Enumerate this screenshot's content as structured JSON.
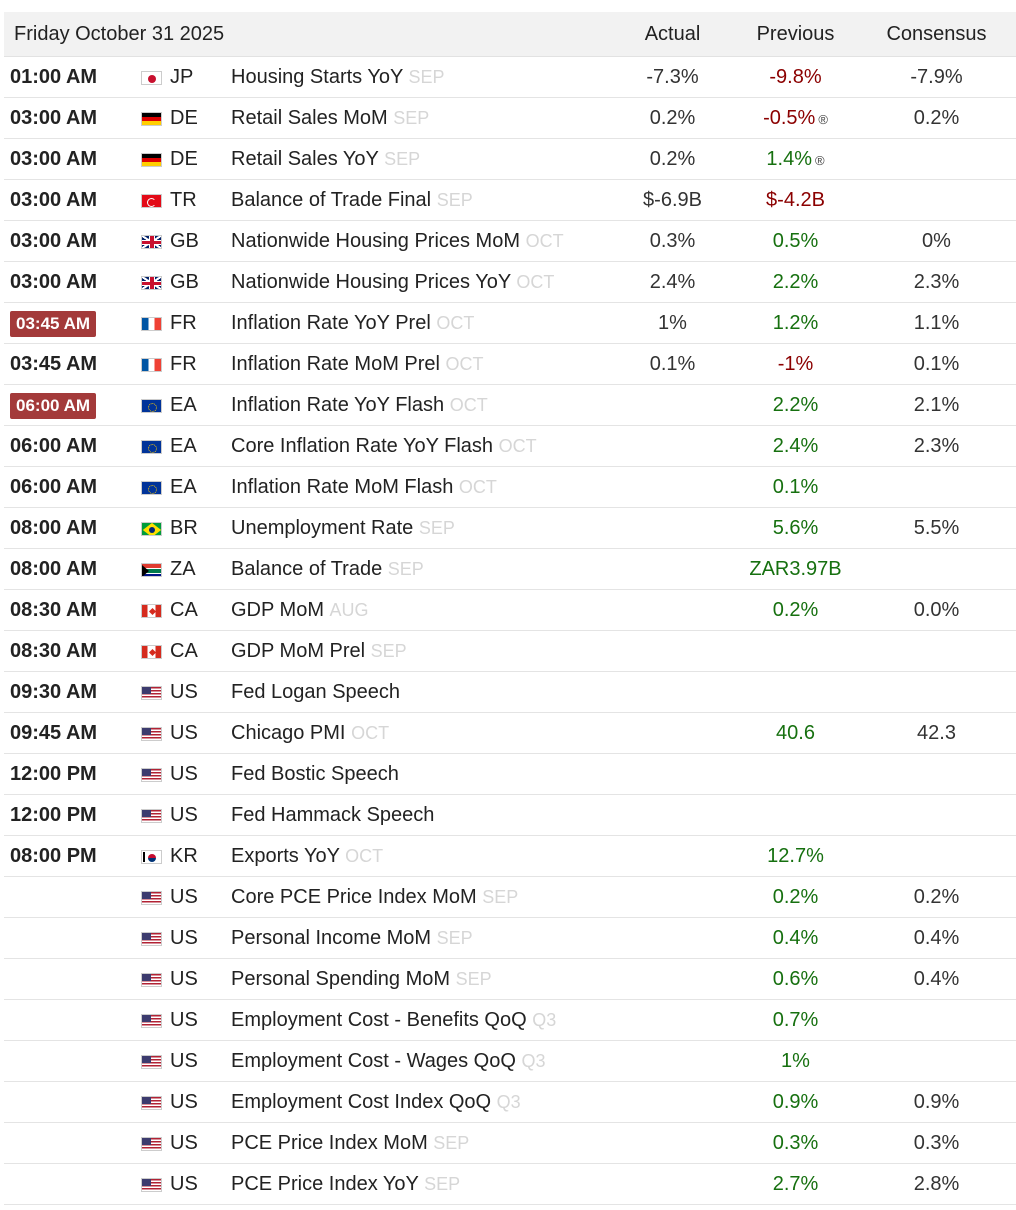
{
  "header": {
    "date": "Friday October 31 2025",
    "actual": "Actual",
    "previous": "Previous",
    "consensus": "Consensus"
  },
  "rows": [
    {
      "time": "01:00 AM",
      "highlight": false,
      "flag": "japan-flag-icon",
      "country": "JP",
      "event": "Housing Starts YoY",
      "ref": "SEP",
      "actual": "-7.3%",
      "previous": "-9.8%",
      "prev_color": "red",
      "revised": false,
      "consensus": "-7.9%"
    },
    {
      "time": "03:00 AM",
      "highlight": false,
      "flag": "germany-flag-icon",
      "country": "DE",
      "event": "Retail Sales MoM",
      "ref": "SEP",
      "actual": "0.2%",
      "previous": "-0.5%",
      "prev_color": "red",
      "revised": true,
      "consensus": "0.2%"
    },
    {
      "time": "03:00 AM",
      "highlight": false,
      "flag": "germany-flag-icon",
      "country": "DE",
      "event": "Retail Sales YoY",
      "ref": "SEP",
      "actual": "0.2%",
      "previous": "1.4%",
      "prev_color": "green",
      "revised": true,
      "consensus": ""
    },
    {
      "time": "03:00 AM",
      "highlight": false,
      "flag": "turkey-flag-icon",
      "country": "TR",
      "event": "Balance of Trade Final",
      "ref": "SEP",
      "actual": "$-6.9B",
      "previous": "$-4.2B",
      "prev_color": "red",
      "revised": false,
      "consensus": ""
    },
    {
      "time": "03:00 AM",
      "highlight": false,
      "flag": "uk-flag-icon",
      "country": "GB",
      "event": "Nationwide Housing Prices MoM",
      "ref": "OCT",
      "actual": "0.3%",
      "previous": "0.5%",
      "prev_color": "green",
      "revised": false,
      "consensus": "0%"
    },
    {
      "time": "03:00 AM",
      "highlight": false,
      "flag": "uk-flag-icon",
      "country": "GB",
      "event": "Nationwide Housing Prices YoY",
      "ref": "OCT",
      "actual": "2.4%",
      "previous": "2.2%",
      "prev_color": "green",
      "revised": false,
      "consensus": "2.3%"
    },
    {
      "time": "03:45 AM",
      "highlight": true,
      "flag": "france-flag-icon",
      "country": "FR",
      "event": "Inflation Rate YoY Prel",
      "ref": "OCT",
      "actual": "1%",
      "previous": "1.2%",
      "prev_color": "green",
      "revised": false,
      "consensus": "1.1%"
    },
    {
      "time": "03:45 AM",
      "highlight": false,
      "flag": "france-flag-icon",
      "country": "FR",
      "event": "Inflation Rate MoM Prel",
      "ref": "OCT",
      "actual": "0.1%",
      "previous": "-1%",
      "prev_color": "red",
      "revised": false,
      "consensus": "0.1%"
    },
    {
      "time": "06:00 AM",
      "highlight": true,
      "flag": "eu-flag-icon",
      "country": "EA",
      "event": "Inflation Rate YoY Flash",
      "ref": "OCT",
      "actual": "",
      "previous": "2.2%",
      "prev_color": "green",
      "revised": false,
      "consensus": "2.1%"
    },
    {
      "time": "06:00 AM",
      "highlight": false,
      "flag": "eu-flag-icon",
      "country": "EA",
      "event": "Core Inflation Rate YoY Flash",
      "ref": "OCT",
      "actual": "",
      "previous": "2.4%",
      "prev_color": "green",
      "revised": false,
      "consensus": "2.3%"
    },
    {
      "time": "06:00 AM",
      "highlight": false,
      "flag": "eu-flag-icon",
      "country": "EA",
      "event": "Inflation Rate MoM Flash",
      "ref": "OCT",
      "actual": "",
      "previous": "0.1%",
      "prev_color": "green",
      "revised": false,
      "consensus": ""
    },
    {
      "time": "08:00 AM",
      "highlight": false,
      "flag": "brazil-flag-icon",
      "country": "BR",
      "event": "Unemployment Rate",
      "ref": "SEP",
      "actual": "",
      "previous": "5.6%",
      "prev_color": "green",
      "revised": false,
      "consensus": "5.5%"
    },
    {
      "time": "08:00 AM",
      "highlight": false,
      "flag": "south-africa-flag-icon",
      "country": "ZA",
      "event": "Balance of Trade",
      "ref": "SEP",
      "actual": "",
      "previous": "ZAR3.97B",
      "prev_color": "green",
      "revised": false,
      "consensus": ""
    },
    {
      "time": "08:30 AM",
      "highlight": false,
      "flag": "canada-flag-icon",
      "country": "CA",
      "event": "GDP MoM",
      "ref": "AUG",
      "actual": "",
      "previous": "0.2%",
      "prev_color": "green",
      "revised": false,
      "consensus": "0.0%"
    },
    {
      "time": "08:30 AM",
      "highlight": false,
      "flag": "canada-flag-icon",
      "country": "CA",
      "event": "GDP MoM Prel",
      "ref": "SEP",
      "actual": "",
      "previous": "",
      "prev_color": "neutral",
      "revised": false,
      "consensus": ""
    },
    {
      "time": "09:30 AM",
      "highlight": false,
      "flag": "us-flag-icon",
      "country": "US",
      "event": "Fed Logan Speech",
      "ref": "",
      "actual": "",
      "previous": "",
      "prev_color": "neutral",
      "revised": false,
      "consensus": ""
    },
    {
      "time": "09:45 AM",
      "highlight": false,
      "flag": "us-flag-icon",
      "country": "US",
      "event": "Chicago PMI",
      "ref": "OCT",
      "actual": "",
      "previous": "40.6",
      "prev_color": "green",
      "revised": false,
      "consensus": "42.3"
    },
    {
      "time": "12:00 PM",
      "highlight": false,
      "flag": "us-flag-icon",
      "country": "US",
      "event": "Fed Bostic Speech",
      "ref": "",
      "actual": "",
      "previous": "",
      "prev_color": "neutral",
      "revised": false,
      "consensus": ""
    },
    {
      "time": "12:00 PM",
      "highlight": false,
      "flag": "us-flag-icon",
      "country": "US",
      "event": "Fed Hammack Speech",
      "ref": "",
      "actual": "",
      "previous": "",
      "prev_color": "neutral",
      "revised": false,
      "consensus": ""
    },
    {
      "time": "08:00 PM",
      "highlight": false,
      "flag": "south-korea-flag-icon",
      "country": "KR",
      "event": "Exports YoY",
      "ref": "OCT",
      "actual": "",
      "previous": "12.7%",
      "prev_color": "green",
      "revised": false,
      "consensus": ""
    },
    {
      "time": "",
      "highlight": false,
      "flag": "us-flag-icon",
      "country": "US",
      "event": "Core PCE Price Index MoM",
      "ref": "SEP",
      "actual": "",
      "previous": "0.2%",
      "prev_color": "green",
      "revised": false,
      "consensus": "0.2%"
    },
    {
      "time": "",
      "highlight": false,
      "flag": "us-flag-icon",
      "country": "US",
      "event": "Personal Income MoM",
      "ref": "SEP",
      "actual": "",
      "previous": "0.4%",
      "prev_color": "green",
      "revised": false,
      "consensus": "0.4%"
    },
    {
      "time": "",
      "highlight": false,
      "flag": "us-flag-icon",
      "country": "US",
      "event": "Personal Spending MoM",
      "ref": "SEP",
      "actual": "",
      "previous": "0.6%",
      "prev_color": "green",
      "revised": false,
      "consensus": "0.4%"
    },
    {
      "time": "",
      "highlight": false,
      "flag": "us-flag-icon",
      "country": "US",
      "event": "Employment Cost - Benefits QoQ",
      "ref": "Q3",
      "actual": "",
      "previous": "0.7%",
      "prev_color": "green",
      "revised": false,
      "consensus": ""
    },
    {
      "time": "",
      "highlight": false,
      "flag": "us-flag-icon",
      "country": "US",
      "event": "Employment Cost - Wages QoQ",
      "ref": "Q3",
      "actual": "",
      "previous": "1%",
      "prev_color": "green",
      "revised": false,
      "consensus": ""
    },
    {
      "time": "",
      "highlight": false,
      "flag": "us-flag-icon",
      "country": "US",
      "event": "Employment Cost Index QoQ",
      "ref": "Q3",
      "actual": "",
      "previous": "0.9%",
      "prev_color": "green",
      "revised": false,
      "consensus": "0.9%"
    },
    {
      "time": "",
      "highlight": false,
      "flag": "us-flag-icon",
      "country": "US",
      "event": "PCE Price Index MoM",
      "ref": "SEP",
      "actual": "",
      "previous": "0.3%",
      "prev_color": "green",
      "revised": false,
      "consensus": "0.3%"
    },
    {
      "time": "",
      "highlight": false,
      "flag": "us-flag-icon",
      "country": "US",
      "event": "PCE Price Index YoY",
      "ref": "SEP",
      "actual": "",
      "previous": "2.7%",
      "prev_color": "green",
      "revised": false,
      "consensus": "2.8%"
    }
  ],
  "revised_symbol": "®",
  "colors": {
    "highlight_bg": "#a33a3a",
    "previous_red": "#8b0000",
    "previous_green": "#16700f",
    "reference_gray": "#d6d6d6",
    "header_bg": "#f2f2f2"
  }
}
